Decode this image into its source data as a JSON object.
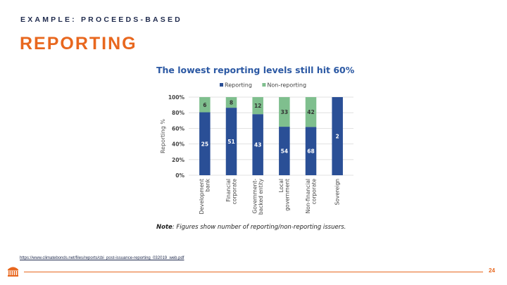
{
  "slide": {
    "kicker": "EXAMPLE: PROCEEDS-BASED",
    "title": "REPORTING",
    "source_link": "https://www.climatebonds.net/files/reports/cbi_post-issuance-reporting_032019_web.pdf",
    "page_number": "24",
    "accent_color": "#e8671e",
    "logo_icon": "rotunda-logo-icon"
  },
  "note": {
    "label": "Note",
    "text": ": Figures show number of reporting/non-reporting issuers."
  },
  "chart_data": {
    "type": "bar",
    "stacked": true,
    "title": "The lowest reporting levels still hit 60%",
    "xlabel": "",
    "ylabel": "Reporting %",
    "ylim": [
      0,
      100
    ],
    "yticks": [
      "0%",
      "20%",
      "40%",
      "60%",
      "80%",
      "100%"
    ],
    "grid": true,
    "legend_position": "top",
    "categories": [
      "Development bank",
      "Financial corporate",
      "Government-backed entity",
      "Local government",
      "Non-financial corporate",
      "Sovereign"
    ],
    "category_lines": [
      [
        "Development",
        "bank"
      ],
      [
        "Financial",
        "corporate"
      ],
      [
        "Government-",
        "backed entity"
      ],
      [
        "Local",
        "government"
      ],
      [
        "Non-financial",
        "corporate"
      ],
      [
        "Sovereign"
      ]
    ],
    "series": [
      {
        "name": "Reporting",
        "color": "#2a4f96",
        "counts": [
          25,
          51,
          43,
          54,
          68,
          2
        ],
        "percent": [
          80.6,
          86.4,
          78.2,
          62.1,
          61.8,
          100
        ]
      },
      {
        "name": "Non-reporting",
        "color": "#7fbf8e",
        "counts": [
          6,
          8,
          12,
          33,
          42,
          null
        ],
        "percent": [
          19.4,
          13.6,
          21.8,
          37.9,
          38.2,
          0
        ]
      }
    ]
  }
}
